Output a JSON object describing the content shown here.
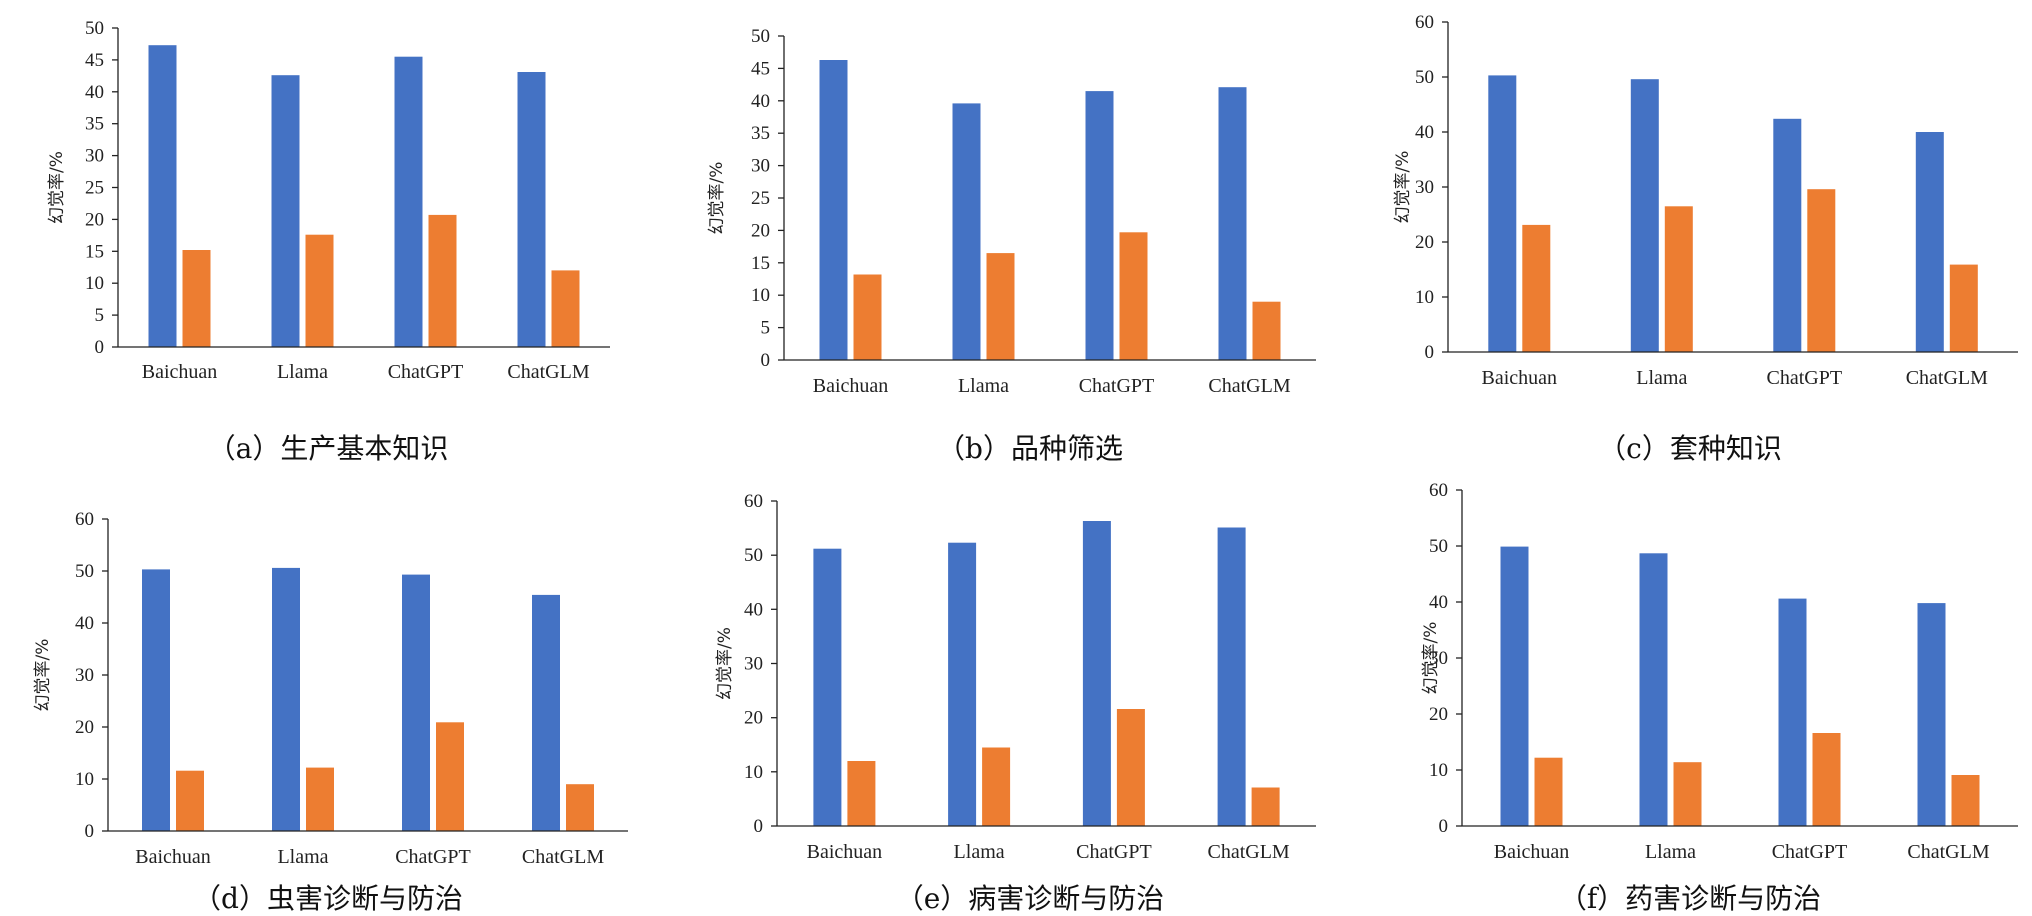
{
  "chart_data": [
    {
      "type": "bar",
      "caption": "（a）生产基本知识",
      "ylabel": "幻觉率/%",
      "ylim": [
        0,
        50
      ],
      "yticks": [
        0,
        5,
        10,
        15,
        20,
        25,
        30,
        35,
        40,
        45,
        50
      ],
      "categories": [
        "Baichuan",
        "Llama",
        "ChatGPT",
        "ChatGLM"
      ],
      "series": [
        {
          "color": "#4472c4",
          "values": [
            47.3,
            42.6,
            45.5,
            43.1
          ]
        },
        {
          "color": "#ed7d31",
          "values": [
            15.2,
            17.6,
            20.7,
            12.0
          ]
        }
      ]
    },
    {
      "type": "bar",
      "caption": "（b）品种筛选",
      "ylabel": "幻觉率/%",
      "ylim": [
        0,
        50
      ],
      "yticks": [
        0,
        5,
        10,
        15,
        20,
        25,
        30,
        35,
        40,
        45,
        50
      ],
      "categories": [
        "Baichuan",
        "Llama",
        "ChatGPT",
        "ChatGLM"
      ],
      "series": [
        {
          "color": "#4472c4",
          "values": [
            46.3,
            39.6,
            41.5,
            42.1
          ]
        },
        {
          "color": "#ed7d31",
          "values": [
            13.2,
            16.5,
            19.7,
            9.0
          ]
        }
      ]
    },
    {
      "type": "bar",
      "caption": "（c）套种知识",
      "ylabel": "幻觉率/%",
      "ylim": [
        0,
        60
      ],
      "yticks": [
        0,
        10,
        20,
        30,
        40,
        50,
        60
      ],
      "categories": [
        "Baichuan",
        "Llama",
        "ChatGPT",
        "ChatGLM"
      ],
      "series": [
        {
          "color": "#4472c4",
          "values": [
            50.3,
            49.6,
            42.4,
            40.0
          ]
        },
        {
          "color": "#ed7d31",
          "values": [
            23.1,
            26.5,
            29.6,
            15.9
          ]
        }
      ]
    },
    {
      "type": "bar",
      "caption": "（d）虫害诊断与防治",
      "ylabel": "幻觉率/%",
      "ylim": [
        0,
        60
      ],
      "yticks": [
        0,
        10,
        20,
        30,
        40,
        50,
        60
      ],
      "categories": [
        "Baichuan",
        "Llama",
        "ChatGPT",
        "ChatGLM"
      ],
      "series": [
        {
          "color": "#4472c4",
          "values": [
            50.3,
            50.6,
            49.3,
            45.4
          ]
        },
        {
          "color": "#ed7d31",
          "values": [
            11.6,
            12.2,
            20.9,
            9.0
          ]
        }
      ]
    },
    {
      "type": "bar",
      "caption": "（e）病害诊断与防治",
      "ylabel": "幻觉率/%",
      "ylim": [
        0,
        60
      ],
      "yticks": [
        0,
        10,
        20,
        30,
        40,
        50,
        60
      ],
      "categories": [
        "Baichuan",
        "Llama",
        "ChatGPT",
        "ChatGLM"
      ],
      "series": [
        {
          "color": "#4472c4",
          "values": [
            51.2,
            52.3,
            56.3,
            55.1
          ]
        },
        {
          "color": "#ed7d31",
          "values": [
            12.0,
            14.5,
            21.6,
            7.1
          ]
        }
      ]
    },
    {
      "type": "bar",
      "caption": "（f）药害诊断与防治",
      "ylabel": "幻觉率/%",
      "ylim": [
        0,
        60
      ],
      "yticks": [
        0,
        10,
        20,
        30,
        40,
        50,
        60
      ],
      "categories": [
        "Baichuan",
        "Llama",
        "ChatGPT",
        "ChatGLM"
      ],
      "series": [
        {
          "color": "#4472c4",
          "values": [
            49.9,
            48.7,
            40.6,
            39.8
          ]
        },
        {
          "color": "#ed7d31",
          "values": [
            12.2,
            11.4,
            16.6,
            9.1
          ]
        }
      ]
    }
  ]
}
